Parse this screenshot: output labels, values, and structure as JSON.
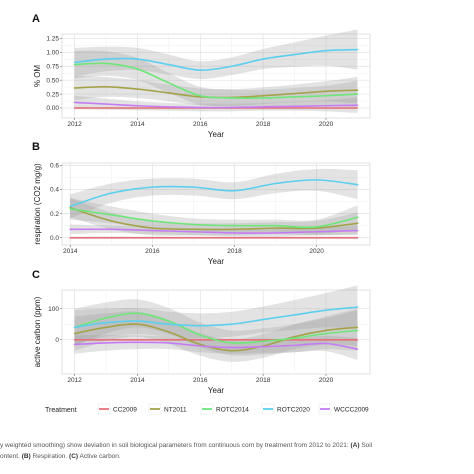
{
  "caption": {
    "line1_prefix": "y weighted smoothing) show deviation in soil biological parameters from continuous corn by treatment from 2012 to 2021:",
    "line1_label_a": "(A)",
    "line1_suffix": "Soil",
    "line2_prefix": "ontent.",
    "line2_label_b": "(B)",
    "line2_mid": "Respiration.",
    "line2_label_c": "(C)",
    "line2_suffix": "Active carbon."
  },
  "legend": {
    "title": "Treatment",
    "position": "bottom",
    "entries": [
      {
        "name": "CC2009",
        "color": "#e8707a"
      },
      {
        "name": "NT2011",
        "color": "#a4a24a"
      },
      {
        "name": "ROTC2014",
        "color": "#6ee67a"
      },
      {
        "name": "ROTC2020",
        "color": "#5ccfee"
      },
      {
        "name": "WCCC2009",
        "color": "#c57cf2"
      }
    ]
  },
  "chart_data": [
    {
      "type": "line",
      "panel": "A",
      "title": "",
      "xlabel": "Year",
      "ylabel": "% OM",
      "xlim": [
        2011.6,
        2021.4
      ],
      "ylim": [
        -0.18,
        1.33
      ],
      "xticks": [
        2012,
        2014,
        2016,
        2018,
        2020
      ],
      "yticks": [
        0.0,
        0.25,
        0.5,
        0.75,
        1.0,
        1.25
      ],
      "ytick_labels": [
        "0.00",
        "0.25",
        "0.50",
        "0.75",
        "1.00",
        "1.25"
      ],
      "grid": true,
      "confidence_bands": true,
      "x": [
        2012,
        2013,
        2014,
        2015,
        2016,
        2017,
        2018,
        2019,
        2020,
        2021
      ],
      "series": [
        {
          "name": "CC2009",
          "color": "#e8707a",
          "values": [
            0.0,
            0.0,
            0.0,
            0.0,
            0.0,
            0.0,
            0.0,
            0.0,
            0.0,
            0.0
          ],
          "band": [
            0.02,
            0.02,
            0.02,
            0.02,
            0.02,
            0.02,
            0.02,
            0.02,
            0.02,
            0.02
          ]
        },
        {
          "name": "NT2011",
          "color": "#a4a24a",
          "values": [
            0.36,
            0.38,
            0.34,
            0.27,
            0.2,
            0.19,
            0.22,
            0.26,
            0.3,
            0.32
          ],
          "band": [
            0.22,
            0.18,
            0.16,
            0.15,
            0.15,
            0.15,
            0.15,
            0.16,
            0.18,
            0.24
          ]
        },
        {
          "name": "ROTC2014",
          "color": "#6ee67a",
          "values": [
            0.78,
            0.8,
            0.7,
            0.45,
            0.22,
            0.18,
            0.18,
            0.2,
            0.22,
            0.25
          ],
          "band": [
            0.25,
            0.22,
            0.2,
            0.18,
            0.16,
            0.15,
            0.15,
            0.16,
            0.18,
            0.24
          ]
        },
        {
          "name": "ROTC2020",
          "color": "#5ccfee",
          "values": [
            0.82,
            0.88,
            0.88,
            0.78,
            0.68,
            0.75,
            0.88,
            0.96,
            1.03,
            1.05
          ],
          "band": [
            0.26,
            0.22,
            0.2,
            0.18,
            0.16,
            0.16,
            0.18,
            0.22,
            0.27,
            0.36
          ]
        },
        {
          "name": "WCCC2009",
          "color": "#c57cf2",
          "values": [
            0.1,
            0.07,
            0.04,
            0.02,
            0.01,
            0.01,
            0.02,
            0.03,
            0.04,
            0.05
          ],
          "band": [
            0.12,
            0.1,
            0.08,
            0.07,
            0.07,
            0.07,
            0.07,
            0.08,
            0.1,
            0.14
          ]
        }
      ]
    },
    {
      "type": "line",
      "panel": "B",
      "title": "",
      "xlabel": "Year",
      "ylabel": "respiration (CO2 mg/g)",
      "xlim": [
        2013.8,
        2021.3
      ],
      "ylim": [
        -0.06,
        0.62
      ],
      "xticks": [
        2014,
        2016,
        2018,
        2020
      ],
      "yticks": [
        0.0,
        0.2,
        0.4,
        0.6
      ],
      "ytick_labels": [
        "0.0",
        "0.2",
        "0.4",
        "0.6"
      ],
      "grid": true,
      "confidence_bands": true,
      "x": [
        2014,
        2015,
        2016,
        2017,
        2018,
        2019,
        2020,
        2021
      ],
      "series": [
        {
          "name": "CC2009",
          "color": "#e8707a",
          "values": [
            0.0,
            0.0,
            0.0,
            0.0,
            0.0,
            0.0,
            0.0,
            0.0
          ],
          "band": [
            0.01,
            0.01,
            0.01,
            0.01,
            0.01,
            0.01,
            0.01,
            0.01
          ]
        },
        {
          "name": "NT2011",
          "color": "#a4a24a",
          "values": [
            0.25,
            0.14,
            0.08,
            0.07,
            0.07,
            0.08,
            0.08,
            0.12
          ],
          "band": [
            0.08,
            0.07,
            0.06,
            0.05,
            0.05,
            0.05,
            0.06,
            0.09
          ]
        },
        {
          "name": "ROTC2014",
          "color": "#6ee67a",
          "values": [
            0.24,
            0.19,
            0.14,
            0.11,
            0.1,
            0.1,
            0.09,
            0.17
          ],
          "band": [
            0.09,
            0.07,
            0.06,
            0.05,
            0.05,
            0.05,
            0.06,
            0.1
          ]
        },
        {
          "name": "ROTC2020",
          "color": "#5ccfee",
          "values": [
            0.26,
            0.37,
            0.42,
            0.42,
            0.39,
            0.45,
            0.48,
            0.44
          ],
          "band": [
            0.1,
            0.08,
            0.07,
            0.07,
            0.07,
            0.08,
            0.09,
            0.12
          ]
        },
        {
          "name": "WCCC2009",
          "color": "#c57cf2",
          "values": [
            0.07,
            0.07,
            0.06,
            0.05,
            0.04,
            0.04,
            0.05,
            0.06
          ],
          "band": [
            0.04,
            0.03,
            0.03,
            0.03,
            0.03,
            0.03,
            0.03,
            0.04
          ]
        }
      ]
    },
    {
      "type": "line",
      "panel": "C",
      "title": "",
      "xlabel": "Year",
      "ylabel": "active carbon (ppm)",
      "xlim": [
        2011.6,
        2021.4
      ],
      "ylim": [
        -110,
        160
      ],
      "xticks": [
        2012,
        2014,
        2016,
        2018,
        2020
      ],
      "yticks": [
        0,
        100
      ],
      "ytick_labels": [
        "0",
        "100"
      ],
      "grid": true,
      "confidence_bands": true,
      "x": [
        2012,
        2013,
        2014,
        2015,
        2016,
        2017,
        2018,
        2019,
        2020,
        2021
      ],
      "series": [
        {
          "name": "CC2009",
          "color": "#e8707a",
          "values": [
            0,
            0,
            0,
            0,
            0,
            0,
            0,
            0,
            0,
            0
          ],
          "band": [
            3,
            3,
            3,
            3,
            3,
            3,
            3,
            3,
            3,
            3
          ]
        },
        {
          "name": "NT2011",
          "color": "#a4a24a",
          "values": [
            20,
            40,
            50,
            25,
            -15,
            -35,
            -20,
            10,
            30,
            40
          ],
          "band": [
            55,
            45,
            40,
            38,
            36,
            36,
            38,
            40,
            45,
            60
          ]
        },
        {
          "name": "ROTC2014",
          "color": "#6ee67a",
          "values": [
            40,
            70,
            85,
            60,
            15,
            -10,
            -5,
            5,
            20,
            30
          ],
          "band": [
            60,
            50,
            45,
            42,
            40,
            40,
            42,
            45,
            50,
            65
          ]
        },
        {
          "name": "ROTC2020",
          "color": "#5ccfee",
          "values": [
            40,
            55,
            60,
            50,
            45,
            50,
            65,
            80,
            95,
            105
          ],
          "band": [
            55,
            45,
            42,
            40,
            40,
            40,
            42,
            48,
            55,
            70
          ]
        },
        {
          "name": "WCCC2009",
          "color": "#c57cf2",
          "values": [
            -15,
            -10,
            -8,
            -10,
            -20,
            -25,
            -22,
            -18,
            -12,
            -30
          ],
          "band": [
            30,
            25,
            22,
            20,
            20,
            20,
            20,
            22,
            25,
            35
          ]
        }
      ]
    }
  ]
}
